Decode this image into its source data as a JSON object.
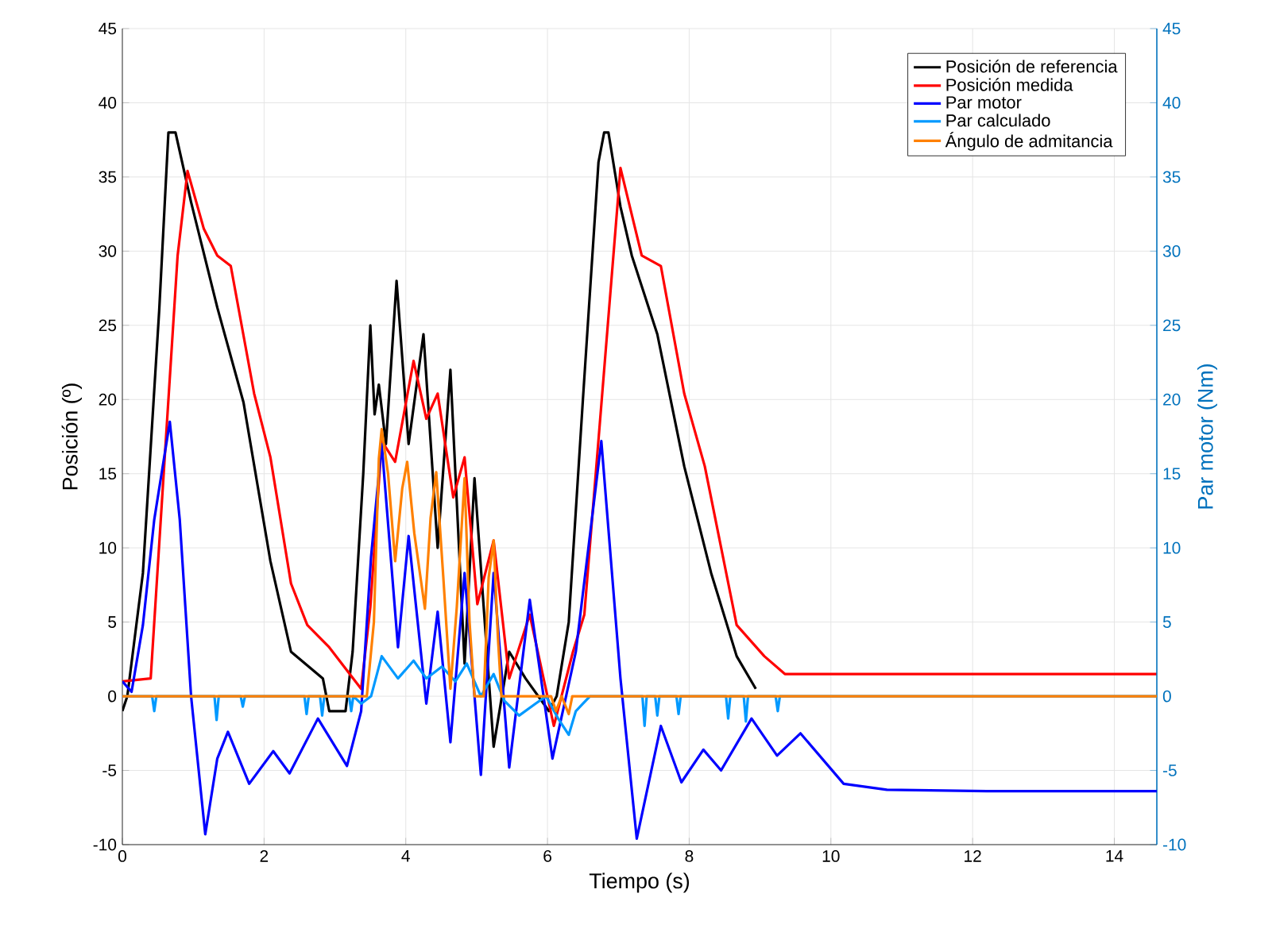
{
  "chart_data": {
    "type": "line",
    "xlabel": "Tiempo (s)",
    "ylabel": "Posición (º)",
    "y2label": "Par motor (Nm)",
    "xlim": [
      0,
      14.6
    ],
    "ylim": [
      -10,
      45
    ],
    "y2lim": [
      -10,
      45
    ],
    "xticks": [
      0,
      2,
      4,
      6,
      8,
      10,
      12,
      14
    ],
    "yticks": [
      -10,
      -5,
      0,
      5,
      10,
      15,
      20,
      25,
      30,
      35,
      40,
      45
    ],
    "y2ticks": [
      -10,
      -5,
      0,
      5,
      10,
      15,
      20,
      25,
      30,
      35,
      40,
      45
    ],
    "grid": true,
    "legend": "top right",
    "series": [
      {
        "name": "Posición de referencia",
        "color": "#000000",
        "x": [
          0,
          0.07,
          0.29,
          0.52,
          0.65,
          0.75,
          0.97,
          1.34,
          1.71,
          2.09,
          2.38,
          2.83,
          2.92,
          3.15,
          3.25,
          3.4,
          3.5,
          3.56,
          3.62,
          3.72,
          3.87,
          4.04,
          4.25,
          4.45,
          4.63,
          4.83,
          4.97,
          5.24,
          5.46,
          5.69,
          6.02,
          6.13,
          6.3,
          6.5,
          6.72,
          6.8,
          6.86,
          7.03,
          7.19,
          7.55,
          7.93,
          8.31,
          8.67,
          8.94
        ],
        "values": [
          -1,
          0,
          8.3,
          26,
          38,
          38,
          33.3,
          26.2,
          19.8,
          9.1,
          3,
          1.2,
          -1,
          -1,
          3,
          15,
          25,
          19,
          21,
          17,
          28,
          17,
          24.4,
          10,
          22,
          2.2,
          14.7,
          -3.4,
          3,
          1.2,
          -1,
          0,
          5,
          20,
          36,
          38,
          38,
          33,
          29.7,
          24.4,
          15.5,
          8.3,
          2.7,
          0.5
        ]
      },
      {
        "name": "Posición medida",
        "color": "#ff0000",
        "x": [
          0,
          0.4,
          0.59,
          0.78,
          0.92,
          1.15,
          1.34,
          1.53,
          1.86,
          2.09,
          2.38,
          2.61,
          2.92,
          3.37,
          3.5,
          3.66,
          3.85,
          4.11,
          4.29,
          4.45,
          4.67,
          4.83,
          5.01,
          5.24,
          5.46,
          5.75,
          6.09,
          6.36,
          6.52,
          6.8,
          7.03,
          7.33,
          7.6,
          7.93,
          8.22,
          8.67,
          9.06,
          9.35,
          14.6
        ],
        "values": [
          1,
          1.2,
          15.5,
          29.7,
          35.4,
          31.5,
          29.7,
          29,
          20.4,
          16.1,
          7.6,
          4.8,
          3.3,
          0.5,
          6,
          17.2,
          15.8,
          22.6,
          18.7,
          20.4,
          13.4,
          16.1,
          6.2,
          10.5,
          1.2,
          5.5,
          -2,
          3,
          5.5,
          22,
          35.6,
          29.7,
          29,
          20.4,
          15.5,
          4.8,
          2.7,
          1.5,
          1.5
        ]
      },
      {
        "name": "Par motor",
        "color": "#0000ff",
        "axis": "y2",
        "x": [
          0,
          0.13,
          0.29,
          0.45,
          0.67,
          0.81,
          0.97,
          1.17,
          1.34,
          1.49,
          1.79,
          2.13,
          2.36,
          2.76,
          3.17,
          3.37,
          3.51,
          3.66,
          3.89,
          4.04,
          4.29,
          4.45,
          4.63,
          4.83,
          5.06,
          5.24,
          5.46,
          5.75,
          6.07,
          6.4,
          6.76,
          7.03,
          7.26,
          7.6,
          7.89,
          8.2,
          8.45,
          8.88,
          9.24,
          9.57,
          10.18,
          10.79,
          12.2,
          14.6
        ],
        "values": [
          1,
          0.3,
          4.8,
          11.9,
          18.5,
          11.9,
          0,
          -9.3,
          -4.2,
          -2.4,
          -5.9,
          -3.7,
          -5.2,
          -1.5,
          -4.7,
          -1,
          9.4,
          17,
          3.3,
          10.8,
          -0.5,
          5.7,
          -3.1,
          8.3,
          -5.3,
          8.3,
          -4.8,
          6.5,
          -4.2,
          3,
          17.2,
          1.2,
          -9.6,
          -2,
          -5.8,
          -3.6,
          -5,
          -1.5,
          -4,
          -2.5,
          -5.9,
          -6.3,
          -6.4,
          -6.4
        ]
      },
      {
        "name": "Par calculado",
        "color": "#0099ff",
        "axis": "y2",
        "x": [
          0,
          0.42,
          0.45,
          0.48,
          1.3,
          1.33,
          1.36,
          1.67,
          1.7,
          1.73,
          2.57,
          2.6,
          2.63,
          2.79,
          2.82,
          2.85,
          3.2,
          3.23,
          3.26,
          3.37,
          3.51,
          3.66,
          3.89,
          4.11,
          4.29,
          4.51,
          4.7,
          4.86,
          5.06,
          5.24,
          5.39,
          5.6,
          5.83,
          5.98,
          6.15,
          6.3,
          6.4,
          6.5,
          6.6,
          6.7,
          7.34,
          7.37,
          7.4,
          7.52,
          7.55,
          7.58,
          7.82,
          7.85,
          7.88,
          8.52,
          8.55,
          8.58,
          8.77,
          8.8,
          8.83,
          9.22,
          9.25,
          9.28,
          14.6
        ],
        "values": [
          0,
          0,
          -1,
          0,
          0,
          -1.6,
          0,
          0,
          -0.7,
          0,
          0,
          -1.2,
          0,
          0,
          -1.3,
          0,
          0,
          -1,
          0,
          -0.5,
          0,
          2.7,
          1.2,
          2.4,
          1.2,
          2,
          1,
          2.2,
          0,
          1.5,
          -0.3,
          -1.3,
          -0.5,
          0,
          -1.5,
          -2.6,
          -1,
          -0.5,
          0,
          0,
          0,
          -2,
          0,
          0,
          -1.3,
          0,
          0,
          -1.2,
          0,
          0,
          -1.5,
          0,
          0,
          -1.7,
          0,
          0,
          -1,
          0,
          0
        ]
      },
      {
        "name": "Ángulo de admitancia",
        "color": "#ff8000",
        "x": [
          0,
          3.45,
          3.55,
          3.62,
          3.66,
          3.75,
          3.85,
          3.95,
          4.02,
          4.12,
          4.27,
          4.35,
          4.43,
          4.53,
          4.63,
          4.72,
          4.83,
          4.9,
          4.97,
          5.1,
          5.17,
          5.24,
          5.3,
          5.35,
          6.05,
          6.12,
          6.2,
          6.3,
          6.35,
          14.6
        ],
        "values": [
          0,
          0,
          5,
          16,
          18,
          15,
          9.1,
          14,
          15.8,
          11,
          5.9,
          12,
          15.1,
          8,
          0.5,
          6,
          14.7,
          5,
          0,
          0,
          8,
          10.5,
          4,
          0,
          0,
          -1,
          0,
          -1.2,
          0,
          0
        ]
      }
    ]
  }
}
